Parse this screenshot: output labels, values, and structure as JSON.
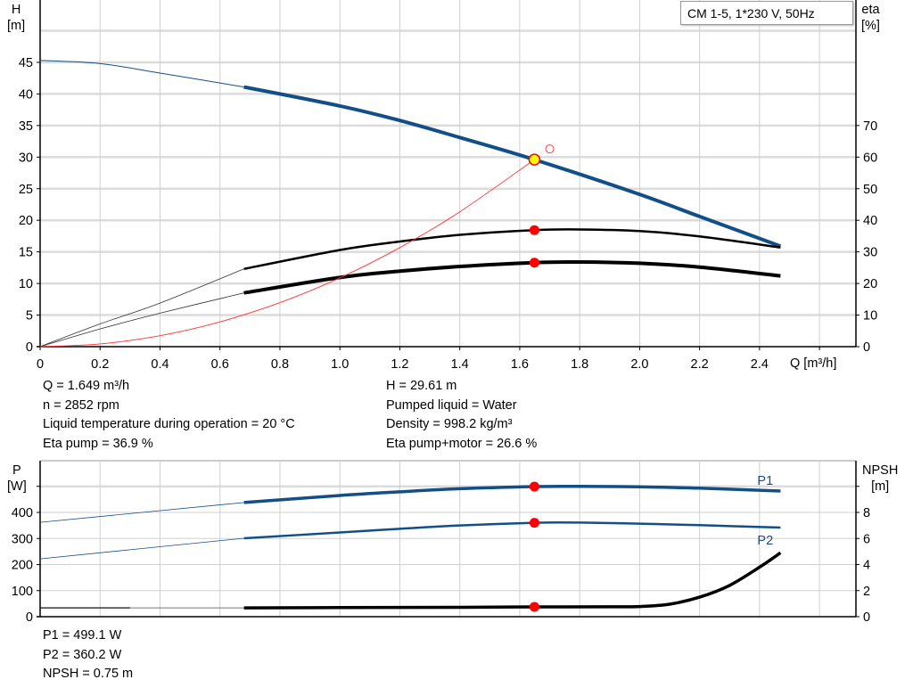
{
  "chart_data": [
    {
      "type": "line",
      "title": "CM 1-5, 1*230 V, 50Hz",
      "xlabel": "Q [m³/h]",
      "ylabel": [
        "H",
        "[m]"
      ],
      "y2label": [
        "eta",
        "[%]"
      ],
      "xlim": [
        0,
        2.6
      ],
      "xticks": [
        "0",
        "0.2",
        "0.4",
        "0.6",
        "0.8",
        "1.0",
        "1.2",
        "1.4",
        "1.6",
        "1.8",
        "2.0",
        "2.2",
        "2.4"
      ],
      "ylim": [
        0,
        50
      ],
      "yticks": [
        "0",
        "5",
        "10",
        "15",
        "20",
        "25",
        "30",
        "35",
        "40",
        "45"
      ],
      "y2lim": [
        0,
        100
      ],
      "y2ticks": [
        "0",
        "10",
        "20",
        "30",
        "40",
        "50",
        "60",
        "70"
      ],
      "grid": true,
      "operating_range_start_q": 0.68,
      "series": [
        {
          "key": "H",
          "axis": "left",
          "color": "#134f87",
          "x": [
            0,
            0.2,
            0.4,
            0.68,
            1.0,
            1.2,
            1.4,
            1.649,
            2.0,
            2.2,
            2.47
          ],
          "y": [
            45.3,
            44.8,
            43.3,
            41.1,
            38.1,
            35.8,
            33.1,
            29.61,
            24.1,
            20.6,
            15.9
          ]
        },
        {
          "key": "eta-pump",
          "axis": "right",
          "color": "#000000",
          "x": [
            0,
            0.2,
            0.4,
            0.68,
            1.0,
            1.2,
            1.4,
            1.649,
            1.8,
            2.0,
            2.2,
            2.47
          ],
          "y": [
            0,
            7.2,
            13.8,
            24.6,
            30.6,
            33.3,
            35.4,
            36.9,
            37.1,
            36.6,
            34.9,
            31.4
          ]
        },
        {
          "key": "eta-pump-motor",
          "axis": "right",
          "color": "#000000",
          "x": [
            0,
            0.2,
            0.4,
            0.68,
            1.0,
            1.2,
            1.4,
            1.649,
            1.8,
            2.0,
            2.2,
            2.47
          ],
          "y": [
            0,
            5.6,
            10.6,
            17.0,
            21.9,
            23.9,
            25.4,
            26.6,
            26.8,
            26.4,
            25.2,
            22.4
          ]
        },
        {
          "key": "system-curve",
          "axis": "left",
          "color": "#ff3333",
          "x": [
            0,
            0.2,
            0.4,
            0.6,
            0.8,
            1.0,
            1.2,
            1.4,
            1.649
          ],
          "y": [
            0,
            0.44,
            1.74,
            3.92,
            6.97,
            10.89,
            15.68,
            21.34,
            29.61
          ]
        }
      ],
      "duty_point": {
        "q": 1.649,
        "h": 29.61,
        "eta_pump": 36.9,
        "eta_pump_motor": 26.6
      },
      "requested_point": {
        "q": 1.7,
        "h": 31.3
      }
    },
    {
      "type": "line",
      "xlim": [
        0,
        2.6
      ],
      "ylabel": [
        "P",
        "[W]"
      ],
      "y2label": [
        "NPSH",
        "[m]"
      ],
      "ylim": [
        0,
        500
      ],
      "yticks": [
        "0",
        "100",
        "200",
        "300",
        "400"
      ],
      "y2lim": [
        0,
        10
      ],
      "y2ticks": [
        "0",
        "2",
        "4",
        "6",
        "8"
      ],
      "grid": true,
      "series": [
        {
          "key": "P1",
          "name": "P1",
          "axis": "left",
          "color": "#134f87",
          "x": [
            0,
            0.68,
            1.0,
            1.2,
            1.4,
            1.649,
            1.8,
            2.0,
            2.2,
            2.47
          ],
          "y": [
            362,
            438,
            465,
            479,
            491,
            499.1,
            500,
            498,
            493,
            482
          ]
        },
        {
          "key": "P2",
          "name": "P2",
          "axis": "left",
          "color": "#134f87",
          "x": [
            0,
            0.68,
            1.0,
            1.2,
            1.4,
            1.649,
            1.8,
            2.0,
            2.2,
            2.47
          ],
          "y": [
            222,
            301,
            323,
            337,
            350,
            360.2,
            361,
            357,
            351,
            342
          ]
        },
        {
          "key": "NPSH",
          "axis": "right",
          "color": "#000000",
          "x": [
            0,
            0.68,
            1.0,
            1.4,
            1.649,
            1.9,
            2.0,
            2.1,
            2.2,
            2.3,
            2.4,
            2.47
          ],
          "y": [
            0.68,
            0.68,
            0.7,
            0.72,
            0.75,
            0.76,
            0.78,
            0.96,
            1.5,
            2.4,
            3.8,
            4.9
          ]
        }
      ],
      "duty_point": {
        "q": 1.649,
        "p1": 499.1,
        "p2": 360.2,
        "npsh": 0.75
      }
    }
  ],
  "info_top_left": [
    "Q = 1.649 m³/h",
    "n = 2852 rpm",
    "Liquid temperature during operation = 20 °C",
    "Eta pump = 36.9 %"
  ],
  "info_top_right": [
    "H = 29.61 m",
    "Pumped liquid = Water",
    "Density = 998.2 kg/m³",
    "Eta pump+motor = 26.6 %"
  ],
  "info_bottom": [
    "P1 = 499.1 W",
    "P2 = 360.2 W",
    "NPSH = 0.75 m"
  ]
}
